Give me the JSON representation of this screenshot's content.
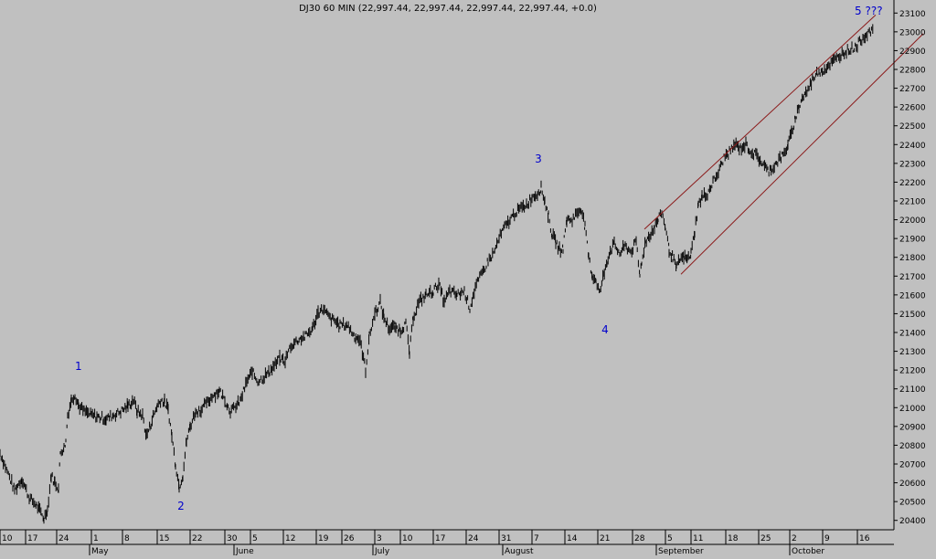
{
  "header": {
    "title": "DJ30 60 MIN (22,997.44, 22,997.44, 22,997.44, 22,997.44, +0.0)"
  },
  "chart_data": {
    "type": "line",
    "title": "DJ30 60 MIN (22,997.44, 22,997.44, 22,997.44, 22,997.44, +0.0)",
    "ylim": [
      20350,
      23150
    ],
    "y_ticks": [
      20400,
      20500,
      20600,
      20700,
      20800,
      20900,
      21000,
      21100,
      21200,
      21300,
      21400,
      21500,
      21600,
      21700,
      21800,
      21900,
      22000,
      22100,
      22200,
      22300,
      22400,
      22500,
      22600,
      22700,
      22800,
      22900,
      23000,
      23100
    ],
    "x_day_labels": [
      "10",
      "17",
      "24",
      "1",
      "8",
      "15",
      "22",
      "30",
      "5",
      "12",
      "19",
      "26",
      "3",
      "10",
      "17",
      "24",
      "31",
      "7",
      "14",
      "21",
      "28",
      "5",
      "11",
      "18",
      "25",
      "2",
      "9",
      "16"
    ],
    "x_month_labels": [
      "May",
      "June",
      "July",
      "August",
      "September",
      "October"
    ],
    "wave_labels": [
      "1",
      "2",
      "3",
      "4",
      "5 ???"
    ],
    "price_path": [
      [
        0,
        20760
      ],
      [
        8,
        20660
      ],
      [
        16,
        20560
      ],
      [
        24,
        20620
      ],
      [
        32,
        20520
      ],
      [
        40,
        20480
      ],
      [
        48,
        20410
      ],
      [
        52,
        20460
      ],
      [
        56,
        20640
      ],
      [
        60,
        20600
      ],
      [
        64,
        20570
      ],
      [
        66,
        20760
      ],
      [
        70,
        20790
      ],
      [
        72,
        20820
      ],
      [
        74,
        20960
      ],
      [
        78,
        21040
      ],
      [
        82,
        21070
      ],
      [
        86,
        21010
      ],
      [
        92,
        20980
      ],
      [
        100,
        20960
      ],
      [
        108,
        20950
      ],
      [
        116,
        20940
      ],
      [
        124,
        20960
      ],
      [
        132,
        20980
      ],
      [
        140,
        21010
      ],
      [
        146,
        21040
      ],
      [
        150,
        20980
      ],
      [
        156,
        20960
      ],
      [
        160,
        20850
      ],
      [
        164,
        20900
      ],
      [
        168,
        20960
      ],
      [
        172,
        21010
      ],
      [
        176,
        21040
      ],
      [
        180,
        21030
      ],
      [
        184,
        20990
      ],
      [
        188,
        20850
      ],
      [
        192,
        20700
      ],
      [
        196,
        20580
      ],
      [
        200,
        20640
      ],
      [
        204,
        20820
      ],
      [
        208,
        20900
      ],
      [
        214,
        20980
      ],
      [
        220,
        20990
      ],
      [
        226,
        21020
      ],
      [
        232,
        21060
      ],
      [
        240,
        21090
      ],
      [
        246,
        21040
      ],
      [
        252,
        20980
      ],
      [
        258,
        21000
      ],
      [
        264,
        21050
      ],
      [
        270,
        21140
      ],
      [
        276,
        21190
      ],
      [
        282,
        21140
      ],
      [
        288,
        21160
      ],
      [
        294,
        21190
      ],
      [
        300,
        21220
      ],
      [
        306,
        21260
      ],
      [
        312,
        21250
      ],
      [
        318,
        21330
      ],
      [
        326,
        21360
      ],
      [
        334,
        21380
      ],
      [
        342,
        21420
      ],
      [
        348,
        21510
      ],
      [
        354,
        21520
      ],
      [
        360,
        21480
      ],
      [
        366,
        21460
      ],
      [
        372,
        21440
      ],
      [
        380,
        21440
      ],
      [
        388,
        21380
      ],
      [
        394,
        21360
      ],
      [
        400,
        21200
      ],
      [
        404,
        21380
      ],
      [
        410,
        21500
      ],
      [
        416,
        21560
      ],
      [
        420,
        21480
      ],
      [
        426,
        21420
      ],
      [
        432,
        21430
      ],
      [
        438,
        21410
      ],
      [
        444,
        21450
      ],
      [
        448,
        21290
      ],
      [
        452,
        21480
      ],
      [
        458,
        21560
      ],
      [
        466,
        21600
      ],
      [
        474,
        21620
      ],
      [
        480,
        21660
      ],
      [
        486,
        21560
      ],
      [
        492,
        21620
      ],
      [
        500,
        21600
      ],
      [
        508,
        21620
      ],
      [
        514,
        21530
      ],
      [
        520,
        21640
      ],
      [
        526,
        21700
      ],
      [
        534,
        21780
      ],
      [
        540,
        21820
      ],
      [
        546,
        21900
      ],
      [
        552,
        21960
      ],
      [
        558,
        22000
      ],
      [
        564,
        22040
      ],
      [
        570,
        22060
      ],
      [
        576,
        22080
      ],
      [
        582,
        22120
      ],
      [
        588,
        22140
      ],
      [
        592,
        22170
      ],
      [
        596,
        22100
      ],
      [
        600,
        22020
      ],
      [
        604,
        21920
      ],
      [
        608,
        21880
      ],
      [
        612,
        21840
      ],
      [
        616,
        21850
      ],
      [
        620,
        22000
      ],
      [
        626,
        22000
      ],
      [
        632,
        22040
      ],
      [
        636,
        22060
      ],
      [
        640,
        21960
      ],
      [
        644,
        21800
      ],
      [
        648,
        21700
      ],
      [
        652,
        21680
      ],
      [
        656,
        21610
      ],
      [
        660,
        21700
      ],
      [
        664,
        21780
      ],
      [
        668,
        21840
      ],
      [
        672,
        21870
      ],
      [
        678,
        21820
      ],
      [
        684,
        21860
      ],
      [
        690,
        21830
      ],
      [
        696,
        21880
      ],
      [
        700,
        21700
      ],
      [
        702,
        21780
      ],
      [
        706,
        21880
      ],
      [
        712,
        21930
      ],
      [
        716,
        21960
      ],
      [
        720,
        22000
      ],
      [
        724,
        22040
      ],
      [
        728,
        21960
      ],
      [
        732,
        21840
      ],
      [
        736,
        21800
      ],
      [
        740,
        21740
      ],
      [
        744,
        21790
      ],
      [
        748,
        21800
      ],
      [
        752,
        21790
      ],
      [
        756,
        21820
      ],
      [
        760,
        21940
      ],
      [
        764,
        22080
      ],
      [
        768,
        22120
      ],
      [
        774,
        22140
      ],
      [
        780,
        22200
      ],
      [
        786,
        22250
      ],
      [
        792,
        22330
      ],
      [
        798,
        22360
      ],
      [
        804,
        22400
      ],
      [
        810,
        22380
      ],
      [
        816,
        22400
      ],
      [
        822,
        22360
      ],
      [
        828,
        22340
      ],
      [
        834,
        22300
      ],
      [
        840,
        22260
      ],
      [
        846,
        22280
      ],
      [
        852,
        22320
      ],
      [
        858,
        22350
      ],
      [
        862,
        22400
      ],
      [
        866,
        22460
      ],
      [
        870,
        22540
      ],
      [
        874,
        22600
      ],
      [
        878,
        22650
      ],
      [
        884,
        22690
      ],
      [
        890,
        22760
      ],
      [
        896,
        22790
      ],
      [
        902,
        22800
      ],
      [
        908,
        22830
      ],
      [
        914,
        22850
      ],
      [
        920,
        22880
      ],
      [
        926,
        22900
      ],
      [
        932,
        22910
      ],
      [
        938,
        22930
      ],
      [
        944,
        22970
      ],
      [
        950,
        23000
      ],
      [
        955,
        22997
      ]
    ],
    "trendlines": [
      {
        "x1": 705,
        "y1": 21950,
        "x2": 958,
        "y2": 23090
      },
      {
        "x1": 745,
        "y1": 21710,
        "x2": 1010,
        "y2": 22990
      }
    ],
    "grid": false,
    "colors": {
      "background": "#c0c0c0",
      "price": "#000000",
      "trendline": "#8b1a1a",
      "wave_label": "#0000cc"
    }
  }
}
